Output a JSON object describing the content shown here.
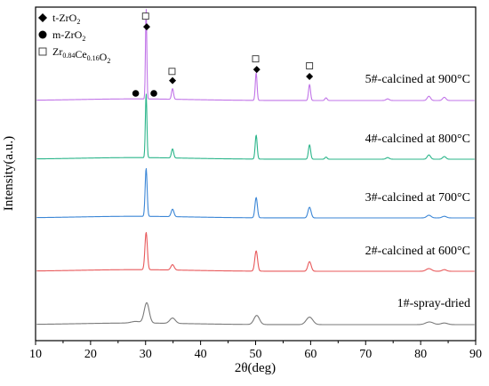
{
  "chart_data": {
    "type": "line",
    "xlabel": "2θ(deg)",
    "ylabel": "Intensity(a.u.)",
    "xlim": [
      10,
      90
    ],
    "x_ticks": [
      "10",
      "20",
      "30",
      "40",
      "50",
      "60",
      "70",
      "80",
      "90"
    ],
    "grid": false,
    "legend": {
      "placement": "top-left",
      "entries": [
        {
          "marker": "diamond",
          "text": "t-ZrO",
          "sub": "2"
        },
        {
          "marker": "circle",
          "text": "m-ZrO",
          "sub": "2"
        },
        {
          "marker": "square",
          "text": "Zr",
          "sub": "0.84",
          "text2": "Ce",
          "sub2": "0.16",
          "text3": "O",
          "sub3": "2"
        }
      ]
    },
    "peak_positions_2theta": {
      "t-ZrO2": [
        30.2,
        34.9,
        50.2,
        59.8
      ],
      "m-ZrO2": [
        28.2,
        31.5
      ],
      "Zr0.84Ce0.16O2": [
        30.0,
        34.8,
        50.0,
        59.8
      ]
    },
    "series": [
      {
        "name": "1#-spray-dried",
        "color": "#7a7a7a",
        "baseline": 0.0,
        "peaks": [
          [
            28.2,
            0.03,
            0.8
          ],
          [
            30.2,
            0.38,
            0.45
          ],
          [
            34.9,
            0.1,
            0.5
          ],
          [
            50.2,
            0.17,
            0.5
          ],
          [
            59.8,
            0.14,
            0.6
          ],
          [
            81.6,
            0.05,
            0.7
          ],
          [
            84.3,
            0.03,
            0.6
          ]
        ]
      },
      {
        "name": "2#-calcined at 600°C",
        "color": "#e8595b",
        "baseline": 1.0,
        "peaks": [
          [
            30.1,
            0.7,
            0.22
          ],
          [
            34.9,
            0.1,
            0.3
          ],
          [
            50.1,
            0.38,
            0.25
          ],
          [
            59.8,
            0.18,
            0.3
          ],
          [
            81.5,
            0.05,
            0.5
          ],
          [
            84.3,
            0.03,
            0.4
          ]
        ]
      },
      {
        "name": "3#-calcined at 700°C",
        "color": "#3b86d6",
        "baseline": 2.0,
        "peaks": [
          [
            30.1,
            0.9,
            0.18
          ],
          [
            34.9,
            0.14,
            0.25
          ],
          [
            50.1,
            0.38,
            0.22
          ],
          [
            59.8,
            0.2,
            0.28
          ],
          [
            81.5,
            0.05,
            0.4
          ],
          [
            84.3,
            0.03,
            0.4
          ]
        ]
      },
      {
        "name": "4#-calcined at 800°C",
        "color": "#2bb58a",
        "baseline": 3.1,
        "peaks": [
          [
            30.1,
            1.2,
            0.14
          ],
          [
            34.9,
            0.17,
            0.2
          ],
          [
            50.1,
            0.45,
            0.18
          ],
          [
            59.8,
            0.27,
            0.2
          ],
          [
            62.8,
            0.04,
            0.2
          ],
          [
            74.0,
            0.03,
            0.3
          ],
          [
            81.5,
            0.08,
            0.3
          ],
          [
            84.3,
            0.05,
            0.3
          ]
        ]
      },
      {
        "name": "5#-calcined at 900°C",
        "color": "#c174e8",
        "baseline": 4.2,
        "peaks": [
          [
            30.1,
            1.7,
            0.12
          ],
          [
            34.9,
            0.2,
            0.18
          ],
          [
            50.1,
            0.52,
            0.16
          ],
          [
            59.8,
            0.3,
            0.18
          ],
          [
            62.8,
            0.05,
            0.2
          ],
          [
            74.0,
            0.03,
            0.3
          ],
          [
            81.5,
            0.08,
            0.3
          ],
          [
            84.3,
            0.06,
            0.3
          ]
        ]
      }
    ]
  }
}
